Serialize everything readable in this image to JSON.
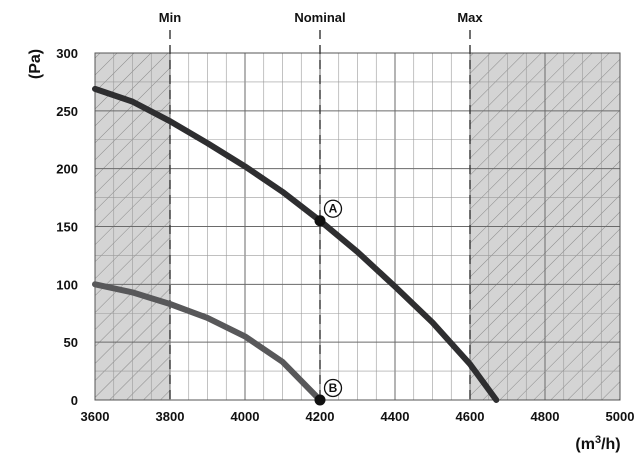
{
  "chart_data": {
    "type": "line",
    "xlabel": "(m³/h)",
    "ylabel": "(Pa)",
    "xlim": [
      3600,
      5000
    ],
    "ylim": [
      0,
      300
    ],
    "x_ticks": [
      "3600",
      "3800",
      "4000",
      "4200",
      "4400",
      "4600",
      "4800",
      "5000"
    ],
    "y_ticks": [
      "0",
      "50",
      "100",
      "150",
      "200",
      "250",
      "300"
    ],
    "grid": true,
    "shaded_ranges": [
      [
        3600,
        3800
      ],
      [
        4600,
        5000
      ]
    ],
    "reference_lines": [
      {
        "label": "Min",
        "x": 3800
      },
      {
        "label": "Nominal",
        "x": 4200
      },
      {
        "label": "Max",
        "x": 4600
      }
    ],
    "series": [
      {
        "color": "#2e2e30",
        "points": [
          [
            3600,
            269
          ],
          [
            3700,
            258
          ],
          [
            3800,
            241
          ],
          [
            3900,
            222
          ],
          [
            4000,
            202
          ],
          [
            4100,
            180
          ],
          [
            4200,
            155
          ],
          [
            4300,
            128
          ],
          [
            4400,
            98
          ],
          [
            4500,
            67
          ],
          [
            4600,
            31
          ],
          [
            4670,
            0
          ]
        ]
      },
      {
        "color": "#58585a",
        "points": [
          [
            3600,
            100
          ],
          [
            3700,
            93
          ],
          [
            3800,
            83
          ],
          [
            3900,
            71
          ],
          [
            4000,
            55
          ],
          [
            4100,
            33
          ],
          [
            4200,
            0
          ]
        ]
      }
    ],
    "operating_points": [
      {
        "label": "A",
        "x": 4200,
        "y": 155
      },
      {
        "label": "B",
        "x": 4200,
        "y": 0
      }
    ]
  }
}
